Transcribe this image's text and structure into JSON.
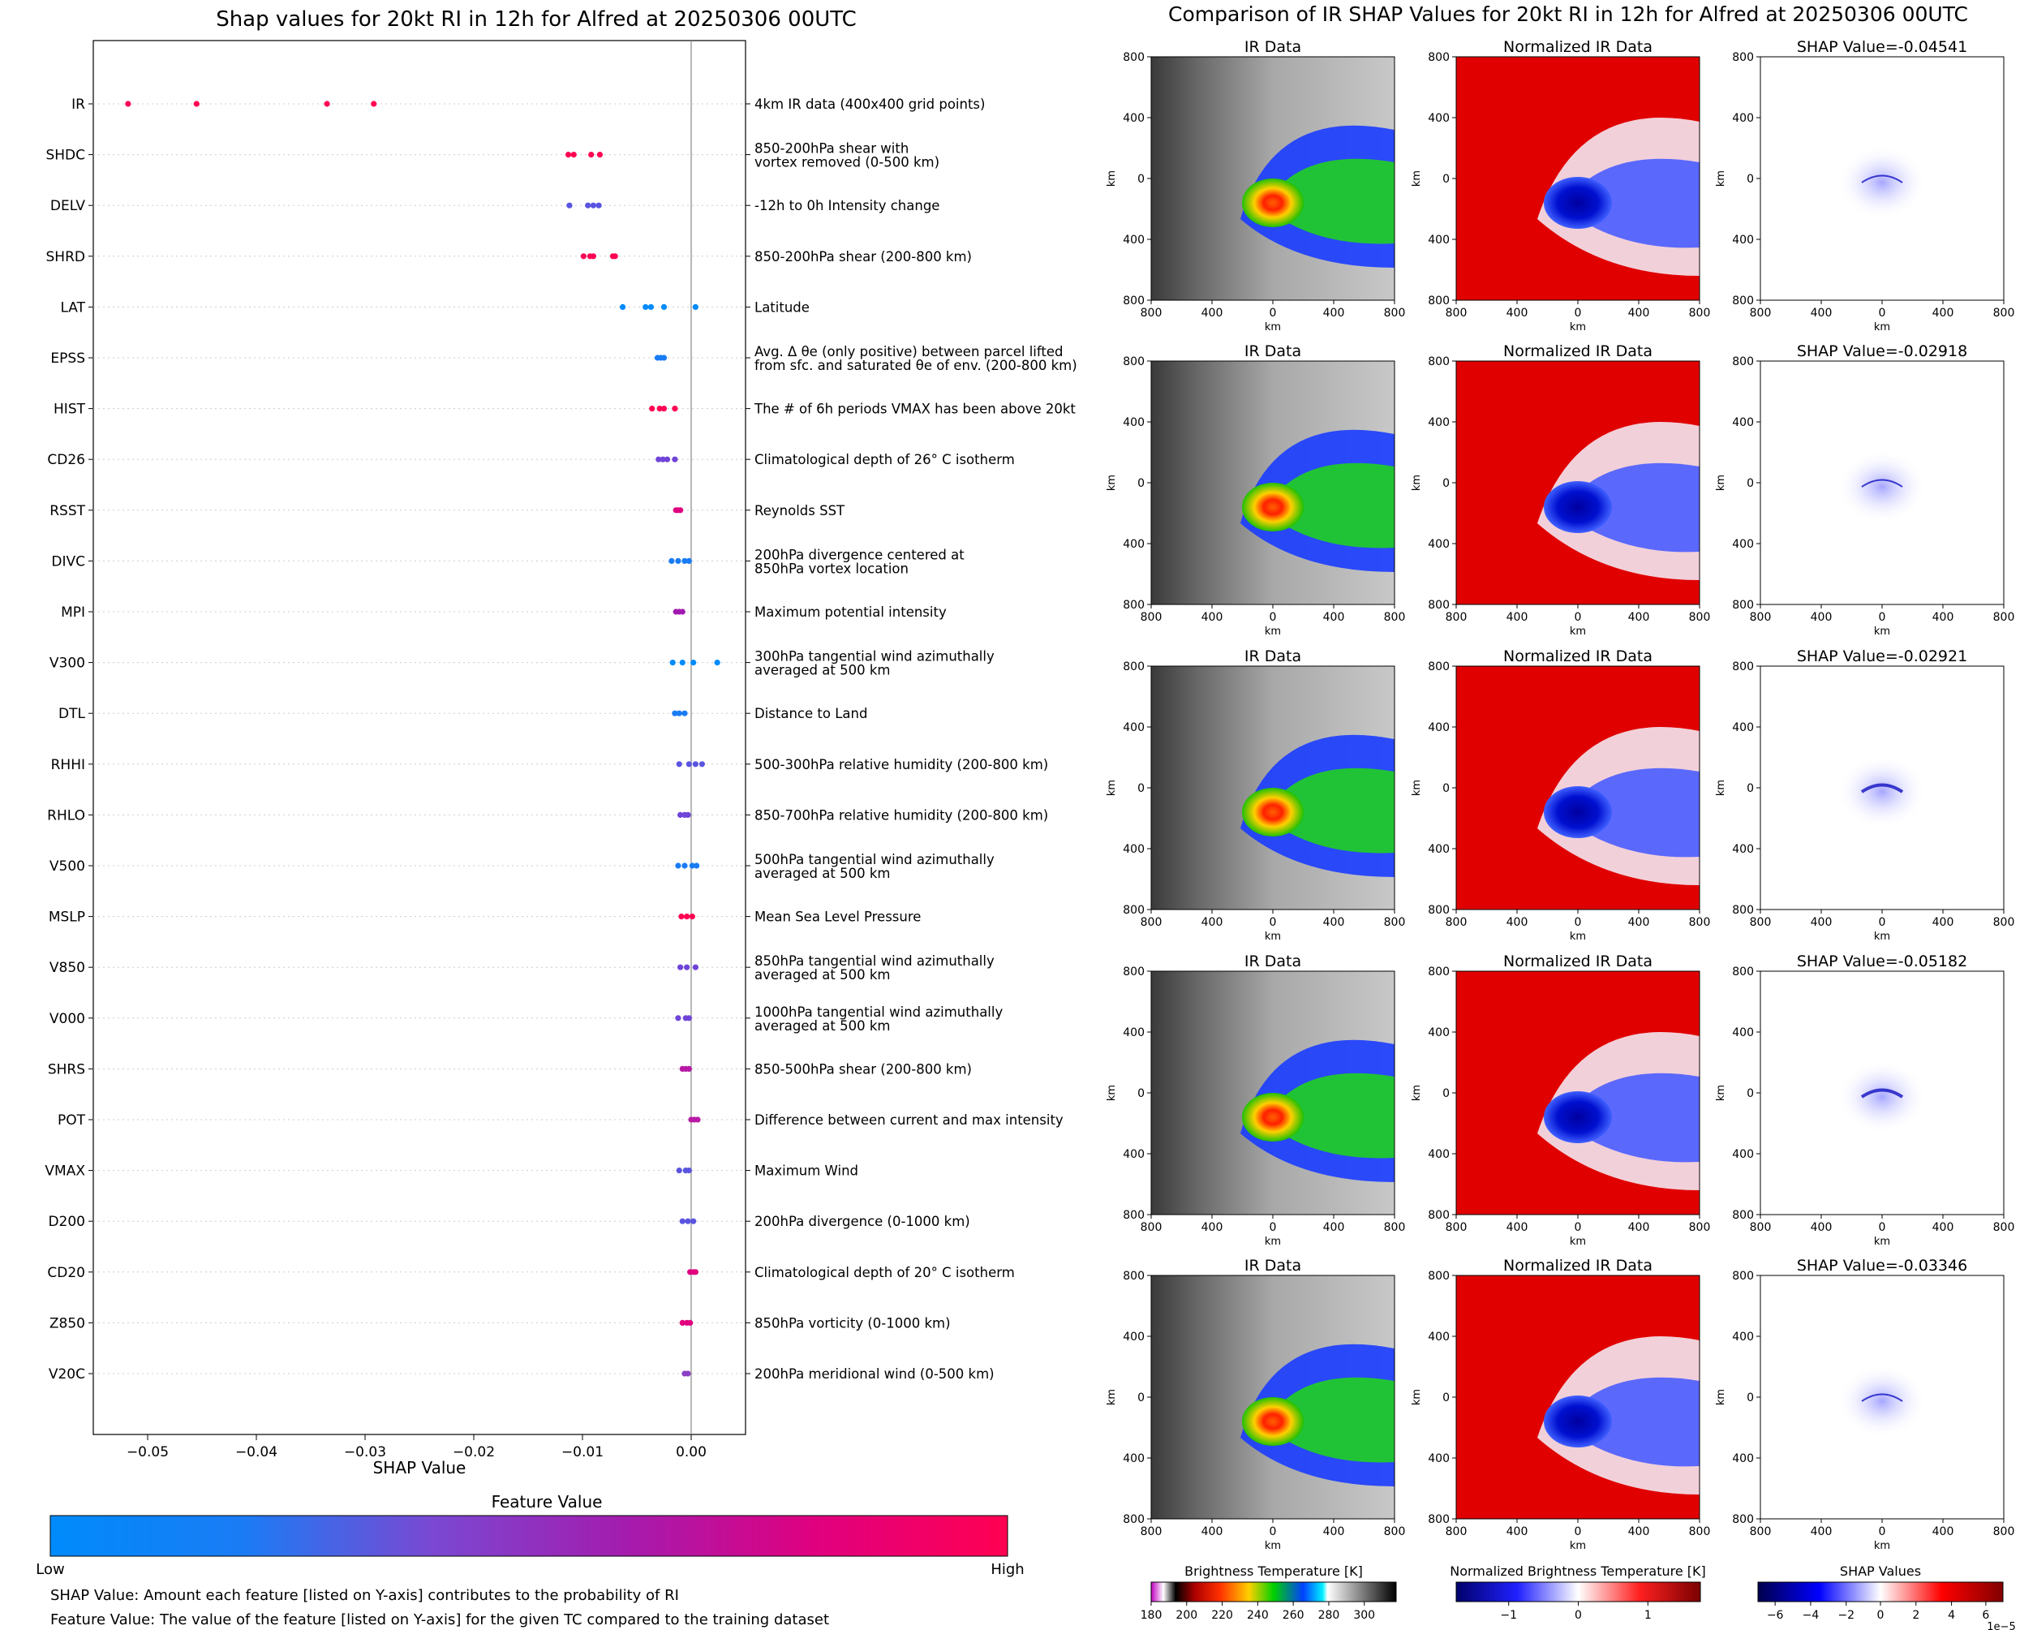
{
  "left_panel": {
    "title": "Shap values for 20kt RI in 12h for Alfred at 20250306 00UTC",
    "xlabel": "SHAP Value",
    "colorbar": {
      "title": "Feature Value",
      "low_label": "Low",
      "high_label": "High",
      "colors": [
        "#008bfb",
        "#5e5ae8",
        "#8b3fc4",
        "#b81aa6",
        "#e0007f",
        "#ff0052"
      ]
    },
    "notes": [
      "SHAP Value: Amount each feature [listed on Y-axis] contributes to the probability of RI",
      "Feature Value: The value of the feature [listed on Y-axis] for the given TC compared to the training dataset"
    ]
  },
  "right_panel": {
    "title": "Comparison of IR SHAP Values for 20kt RI in 12h for Alfred at 20250306 00UTC",
    "column_titles": [
      "IR Data",
      "Normalized IR Data"
    ],
    "shap_titles": [
      "SHAP Value=-0.04541",
      "SHAP Value=-0.02918",
      "SHAP Value=-0.02921",
      "SHAP Value=-0.05182",
      "SHAP Value=-0.03346"
    ],
    "tick_labels": [
      "800",
      "400",
      "0",
      "400",
      "800"
    ],
    "axis_label": "km",
    "colorbars": [
      {
        "title": "Brightness Temperature [K]",
        "ticks": [
          "180",
          "200",
          "220",
          "240",
          "260",
          "280",
          "300"
        ]
      },
      {
        "title": "Normalized Brightness Temperature [K]",
        "ticks": [
          "−1",
          "0",
          "1"
        ]
      },
      {
        "title": "SHAP Values",
        "ticks": [
          "−6",
          "−4",
          "−2",
          "0",
          "2",
          "4",
          "6"
        ],
        "offset": "1e−5"
      }
    ]
  },
  "chart_data": {
    "type": "scatter",
    "subtype": "shap_beeswarm",
    "xlim": [
      -0.055,
      0.005
    ],
    "x_ticks": [
      -0.05,
      -0.04,
      -0.03,
      -0.02,
      -0.01,
      0.0
    ],
    "x_tick_labels": [
      "−0.05",
      "−0.04",
      "−0.03",
      "−0.02",
      "−0.01",
      "0.00"
    ],
    "features": [
      {
        "name": "IR",
        "desc": [
          "4km IR data (400x400 grid points)"
        ],
        "points": [
          -0.0518,
          -0.0455,
          -0.0335,
          -0.0292
        ],
        "color": "#ff0052"
      },
      {
        "name": "SHDC",
        "desc": [
          "850-200hPa shear with",
          "vortex removed (0-500 km)"
        ],
        "points": [
          -0.0113,
          -0.0108,
          -0.0092,
          -0.0084
        ],
        "color": "#ff0052"
      },
      {
        "name": "DELV",
        "desc": [
          "-12h to 0h Intensity change"
        ],
        "points": [
          -0.0112,
          -0.0095,
          -0.009,
          -0.0085
        ],
        "color": "#5a55e0"
      },
      {
        "name": "SHRD",
        "desc": [
          "850-200hPa shear (200-800 km)"
        ],
        "points": [
          -0.0099,
          -0.0093,
          -0.009,
          -0.0072,
          -0.007
        ],
        "color": "#ff0052"
      },
      {
        "name": "LAT",
        "desc": [
          "Latitude"
        ],
        "points": [
          -0.0063,
          -0.0042,
          -0.0037,
          -0.0025,
          0.0004
        ],
        "color": "#008bfb"
      },
      {
        "name": "EPSS",
        "desc": [
          "Avg. Δ θe (only positive) between parcel lifted",
          "from sfc. and saturated θe of env. (200-800 km)"
        ],
        "points": [
          -0.0031,
          -0.0028,
          -0.0025
        ],
        "color": "#1a7cf5"
      },
      {
        "name": "HIST",
        "desc": [
          "The # of 6h periods VMAX has been above 20kt"
        ],
        "points": [
          -0.0036,
          -0.0029,
          -0.0025,
          -0.0015
        ],
        "color": "#ff0052"
      },
      {
        "name": "CD26",
        "desc": [
          "Climatological depth of 26° C isotherm"
        ],
        "points": [
          -0.003,
          -0.0026,
          -0.0022,
          -0.0015
        ],
        "color": "#7044d8"
      },
      {
        "name": "RSST",
        "desc": [
          "Reynolds SST"
        ],
        "points": [
          -0.0014,
          -0.0012,
          -0.001
        ],
        "color": "#e0007f"
      },
      {
        "name": "DIVC",
        "desc": [
          "200hPa divergence centered at",
          "850hPa vortex location"
        ],
        "points": [
          -0.0018,
          -0.0012,
          -0.0006,
          -0.0002
        ],
        "color": "#1a7cf5"
      },
      {
        "name": "MPI",
        "desc": [
          "Maximum potential intensity"
        ],
        "points": [
          -0.0014,
          -0.0011,
          -0.0008
        ],
        "color": "#a01ab0"
      },
      {
        "name": "V300",
        "desc": [
          "300hPa tangential wind azimuthally",
          "averaged at 500 km"
        ],
        "points": [
          -0.0017,
          -0.0008,
          0.0002,
          0.0024
        ],
        "color": "#008bfb"
      },
      {
        "name": "DTL",
        "desc": [
          "Distance to Land"
        ],
        "points": [
          -0.0015,
          -0.0011,
          -0.0006
        ],
        "color": "#1a7cf5"
      },
      {
        "name": "RHHI",
        "desc": [
          "500-300hPa relative humidity (200-800 km)"
        ],
        "points": [
          -0.0011,
          -0.0002,
          0.0004,
          0.001
        ],
        "color": "#5a55e0"
      },
      {
        "name": "RHLO",
        "desc": [
          "850-700hPa relative humidity (200-800 km)"
        ],
        "points": [
          -0.001,
          -0.0006,
          -0.0003
        ],
        "color": "#7044d8"
      },
      {
        "name": "V500",
        "desc": [
          "500hPa tangential wind azimuthally",
          "averaged at 500 km"
        ],
        "points": [
          -0.0012,
          -0.0006,
          0.0001,
          0.0005
        ],
        "color": "#1a7cf5"
      },
      {
        "name": "MSLP",
        "desc": [
          "Mean Sea Level Pressure"
        ],
        "points": [
          -0.0009,
          -0.0004,
          0.0001
        ],
        "color": "#ff0052"
      },
      {
        "name": "V850",
        "desc": [
          "850hPa tangential wind azimuthally",
          "averaged at 500 km"
        ],
        "points": [
          -0.001,
          -0.0004,
          0.0004
        ],
        "color": "#7044d8"
      },
      {
        "name": "V000",
        "desc": [
          "1000hPa tangential wind azimuthally",
          "averaged at 500 km"
        ],
        "points": [
          -0.0012,
          -0.0005,
          -0.0002
        ],
        "color": "#7044d8"
      },
      {
        "name": "SHRS",
        "desc": [
          "850-500hPa shear (200-800 km)"
        ],
        "points": [
          -0.0008,
          -0.0005,
          -0.0002
        ],
        "color": "#b81aa6"
      },
      {
        "name": "POT",
        "desc": [
          "Difference between current and max intensity"
        ],
        "points": [
          0.0,
          0.0003,
          0.0006
        ],
        "color": "#b81aa6"
      },
      {
        "name": "VMAX",
        "desc": [
          "Maximum Wind"
        ],
        "points": [
          -0.0011,
          -0.0005,
          -0.0002
        ],
        "color": "#5a55e0"
      },
      {
        "name": "D200",
        "desc": [
          "200hPa divergence (0-1000 km)"
        ],
        "points": [
          -0.0008,
          -0.0003,
          0.0002
        ],
        "color": "#5a55e0"
      },
      {
        "name": "CD20",
        "desc": [
          "Climatological depth of 20° C isotherm"
        ],
        "points": [
          -0.0001,
          0.0002,
          0.0004
        ],
        "color": "#e0007f"
      },
      {
        "name": "Z850",
        "desc": [
          "850hPa vorticity (0-1000 km)"
        ],
        "points": [
          -0.0008,
          -0.0004,
          -0.0001
        ],
        "color": "#e0007f"
      },
      {
        "name": "V20C",
        "desc": [
          "200hPa meridional wind (0-500 km)"
        ],
        "points": [
          -0.0006,
          -0.0003
        ],
        "color": "#8b3fc4"
      }
    ]
  }
}
